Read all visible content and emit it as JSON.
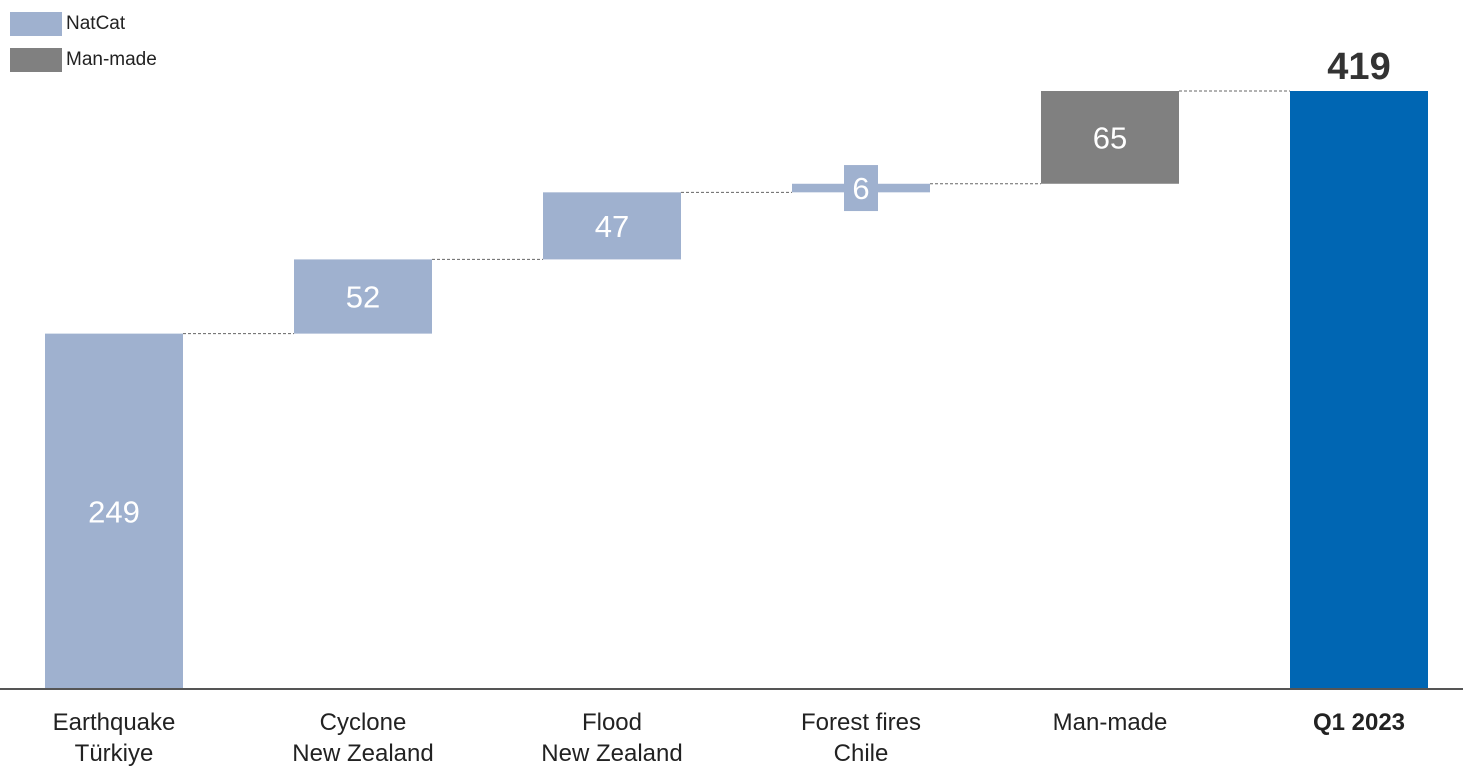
{
  "legend": [
    {
      "label": "NatCat",
      "color": "#9FB1CF"
    },
    {
      "label": "Man-made",
      "color": "#808080"
    }
  ],
  "colors": {
    "natcat": "#9FB1CF",
    "manmade": "#808080",
    "total": "#0066B3",
    "axis": "#555555",
    "connector": "#666666"
  },
  "chart_data": {
    "type": "bar",
    "subtype": "waterfall",
    "categories": [
      [
        "Earthquake",
        "Türkiye"
      ],
      [
        "Cyclone",
        "New Zealand"
      ],
      [
        "Flood",
        "New Zealand"
      ],
      [
        "Forest fires",
        "Chile"
      ],
      [
        "Man-made"
      ],
      [
        "Q1 2023"
      ]
    ],
    "values": [
      249,
      52,
      47,
      6,
      65,
      419
    ],
    "kinds": [
      "natcat",
      "natcat",
      "natcat",
      "natcat",
      "manmade",
      "total"
    ],
    "labels": [
      "249",
      "52",
      "47",
      "6",
      "65",
      "419"
    ],
    "bold_categories": [
      false,
      false,
      false,
      false,
      false,
      true
    ],
    "ylim": [
      0,
      419
    ],
    "grid": false,
    "legend_position": "top-left"
  }
}
